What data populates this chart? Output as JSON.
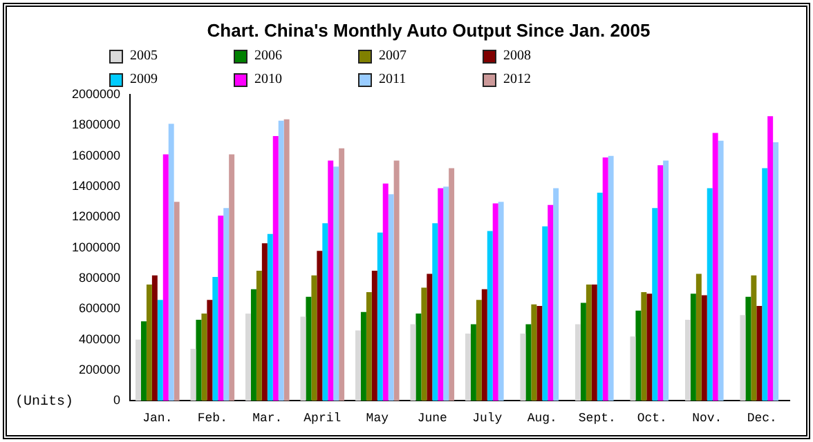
{
  "chart_data": {
    "type": "bar",
    "title": "Chart. China's Monthly Auto Output Since Jan. 2005",
    "ylabel": "(Units)",
    "categories": [
      "Jan.",
      "Feb.",
      "Mar.",
      "April",
      "May",
      "June",
      "July",
      "Aug.",
      "Sept.",
      "Oct.",
      "Nov.",
      "Dec."
    ],
    "series": [
      {
        "name": "2005",
        "color": "#d9d9d9",
        "values": [
          400000,
          340000,
          570000,
          550000,
          460000,
          500000,
          440000,
          440000,
          500000,
          420000,
          530000,
          560000
        ]
      },
      {
        "name": "2006",
        "color": "#008000",
        "values": [
          520000,
          530000,
          730000,
          680000,
          580000,
          570000,
          500000,
          500000,
          640000,
          590000,
          700000,
          680000
        ]
      },
      {
        "name": "2007",
        "color": "#808000",
        "values": [
          760000,
          570000,
          850000,
          820000,
          710000,
          740000,
          660000,
          630000,
          760000,
          710000,
          830000,
          820000
        ]
      },
      {
        "name": "2008",
        "color": "#800000",
        "values": [
          820000,
          660000,
          1030000,
          980000,
          850000,
          830000,
          730000,
          620000,
          760000,
          700000,
          690000,
          620000
        ]
      },
      {
        "name": "2009",
        "color": "#00ccff",
        "values": [
          660000,
          810000,
          1090000,
          1160000,
          1100000,
          1160000,
          1110000,
          1140000,
          1360000,
          1260000,
          1390000,
          1520000
        ]
      },
      {
        "name": "2010",
        "color": "#ff00ff",
        "values": [
          1610000,
          1210000,
          1730000,
          1570000,
          1420000,
          1390000,
          1290000,
          1280000,
          1590000,
          1540000,
          1750000,
          1860000
        ]
      },
      {
        "name": "2011",
        "color": "#99ccff",
        "values": [
          1810000,
          1260000,
          1830000,
          1530000,
          1350000,
          1400000,
          1300000,
          1390000,
          1600000,
          1570000,
          1700000,
          1690000
        ]
      },
      {
        "name": "2012",
        "color": "#cc9999",
        "values": [
          1300000,
          1610000,
          1840000,
          1650000,
          1570000,
          1520000,
          null,
          null,
          null,
          null,
          null,
          null
        ]
      }
    ],
    "ylim": [
      0,
      2000000
    ],
    "yticks": [
      0,
      200000,
      400000,
      600000,
      800000,
      1000000,
      1200000,
      1400000,
      1600000,
      1800000,
      2000000
    ],
    "grid": false,
    "legend": "top"
  }
}
